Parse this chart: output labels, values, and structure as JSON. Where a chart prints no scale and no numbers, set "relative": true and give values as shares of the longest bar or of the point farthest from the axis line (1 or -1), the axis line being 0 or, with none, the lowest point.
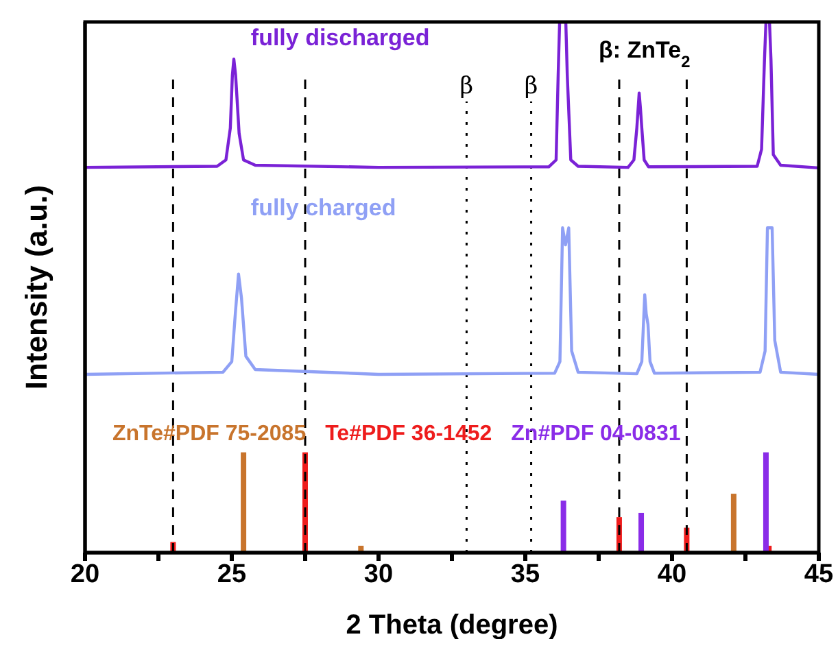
{
  "chart_data": {
    "type": "line",
    "relative": true,
    "xlabel": "2 Theta (degree)",
    "ylabel": "Intensity (a.u.)",
    "xlim": [
      20,
      45
    ],
    "xticks": [
      20,
      {
        "value": 22.5,
        "label": null
      },
      25,
      {
        "value": 27.5,
        "label": null
      },
      30,
      {
        "value": 32.5,
        "label": null
      },
      35,
      {
        "value": 37.5,
        "label": null
      },
      40,
      {
        "value": 42.5,
        "label": null
      },
      45
    ],
    "legend": false,
    "grid": false,
    "marker": "none",
    "line_style": "solid",
    "annotations": [
      "β: ZnTe$_{2}$"
    ],
    "ref_lines": [
      {
        "axis": "x",
        "value": 23.0,
        "label": null,
        "line_style": "dashed",
        "color": "#000000"
      },
      {
        "axis": "x",
        "value": 27.5,
        "label": null,
        "line_style": "dashed",
        "color": "#000000"
      },
      {
        "axis": "x",
        "value": 33.0,
        "label": "β",
        "line_style": "dotted",
        "color": "#000000"
      },
      {
        "axis": "x",
        "value": 35.2,
        "label": "β",
        "line_style": "dotted",
        "color": "#000000"
      },
      {
        "axis": "x",
        "value": 38.2,
        "label": null,
        "line_style": "dashed",
        "color": "#000000"
      },
      {
        "axis": "x",
        "value": 40.5,
        "label": null,
        "line_style": "dashed",
        "color": "#000000"
      }
    ],
    "series": [
      {
        "name": "fully discharged",
        "color": "#7a22d6",
        "x": [
          20,
          24.5,
          24.8,
          24.95,
          25.02,
          25.07,
          25.13,
          25.25,
          25.4,
          25.8,
          30,
          35.8,
          36.05,
          36.12,
          36.17,
          36.38,
          36.43,
          36.55,
          36.8,
          38.5,
          38.7,
          38.8,
          38.88,
          38.92,
          38.97,
          39.05,
          39.2,
          42.9,
          43.05,
          43.15,
          43.2,
          43.32,
          43.37,
          43.45,
          43.7,
          45
        ],
        "values": [
          0.726,
          0.728,
          0.74,
          0.8,
          0.9,
          0.93,
          0.9,
          0.79,
          0.74,
          0.73,
          0.726,
          0.727,
          0.74,
          0.9,
          1,
          1,
          0.9,
          0.74,
          0.728,
          0.726,
          0.74,
          0.8,
          0.866,
          0.84,
          0.8,
          0.74,
          0.727,
          0.728,
          0.76,
          0.93,
          1,
          1,
          0.93,
          0.75,
          0.73,
          0.725
        ]
      },
      {
        "name": "fully charged",
        "color": "#8fa0f5",
        "x": [
          20,
          24.7,
          25.0,
          25.12,
          25.23,
          25.33,
          25.48,
          25.8,
          30,
          36.0,
          36.18,
          36.27,
          36.37,
          36.48,
          36.58,
          36.8,
          38.8,
          38.97,
          39.07,
          39.12,
          39.18,
          39.25,
          39.4,
          43.0,
          43.17,
          43.25,
          43.41,
          43.5,
          43.7,
          45
        ],
        "values": [
          0.336,
          0.34,
          0.36,
          0.45,
          0.525,
          0.48,
          0.37,
          0.345,
          0.336,
          0.338,
          0.36,
          0.612,
          0.58,
          0.612,
          0.38,
          0.34,
          0.337,
          0.36,
          0.486,
          0.45,
          0.43,
          0.36,
          0.338,
          0.34,
          0.38,
          0.612,
          0.612,
          0.4,
          0.34,
          0.336
        ]
      },
      {
        "name": "ZnTe#PDF 75-2085",
        "type": "bar",
        "color": "#c8742c",
        "x": [
          25.4,
          29.4,
          42.1
        ],
        "values": [
          0.189,
          0.013,
          0.111
        ]
      },
      {
        "name": "Te#PDF 36-1452",
        "type": "bar",
        "color": "#ee1c1c",
        "x": [
          23.0,
          27.5,
          38.2,
          40.5,
          43.3
        ],
        "values": [
          0.02,
          0.189,
          0.067,
          0.047,
          0.013
        ]
      },
      {
        "name": "Zn#PDF 04-0831",
        "type": "bar",
        "color": "#8a2ce8",
        "x": [
          36.3,
          38.95,
          43.2
        ],
        "values": [
          0.098,
          0.075,
          0.189
        ]
      }
    ]
  }
}
